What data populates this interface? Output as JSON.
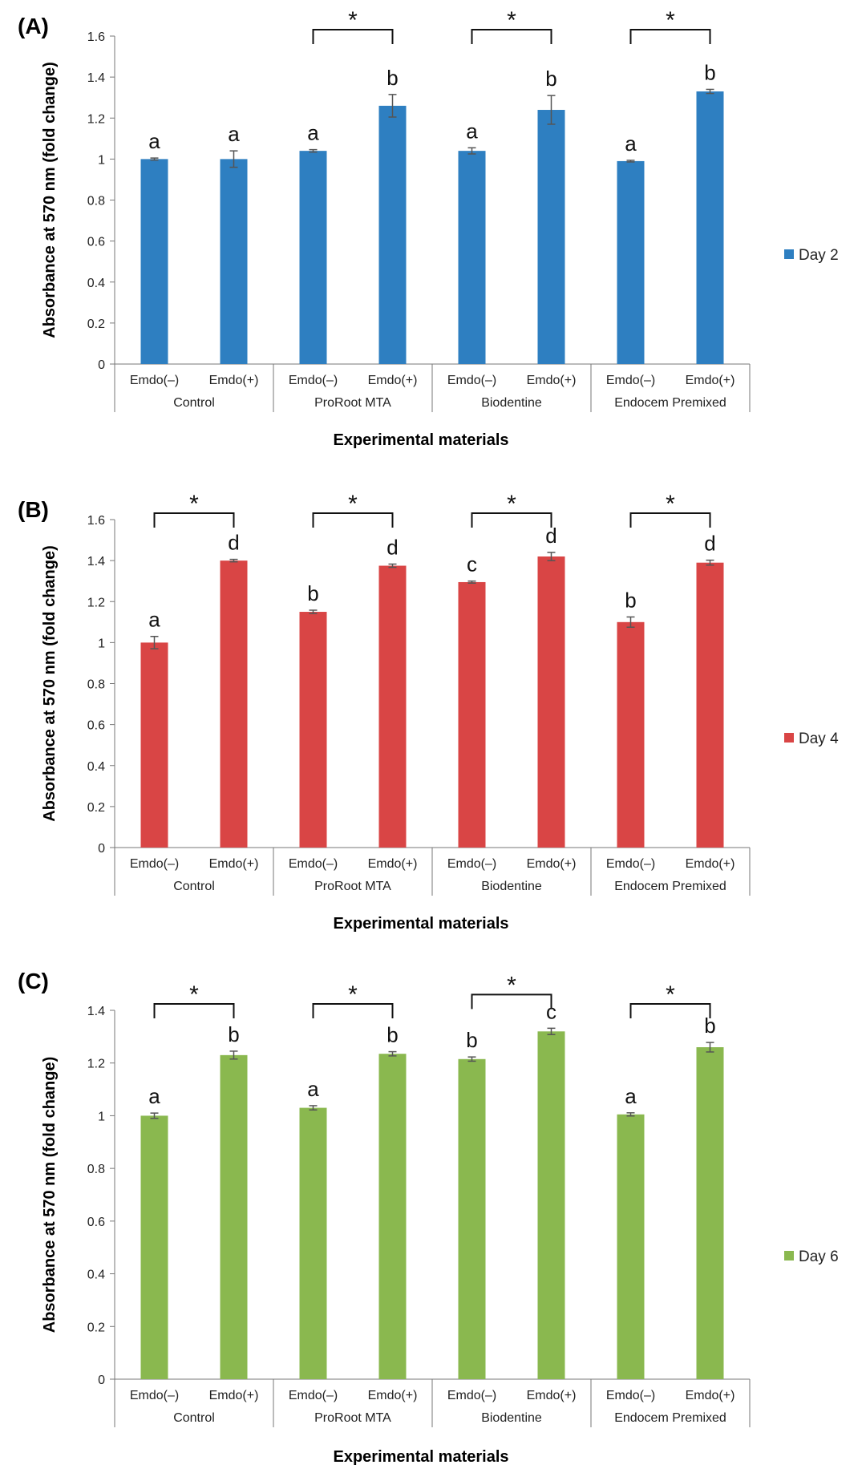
{
  "chart_data": [
    {
      "type": "bar",
      "panel_label": "(A)",
      "ylabel": "Absorbance at 570 nm (fold change)",
      "xlabel": "Experimental materials",
      "ylim": [
        0,
        1.6
      ],
      "ytick_step": 0.2,
      "yticks": [
        "0",
        "0.2",
        "0.4",
        "0.6",
        "0.8",
        "1",
        "1.2",
        "1.4",
        "1.6"
      ],
      "color": "#2e7fc1",
      "legend": {
        "label": "Day 2",
        "position": "right"
      },
      "groups": [
        {
          "label": "Control",
          "subs": [
            "Emdo(–)",
            "Emdo(+)"
          ],
          "values": [
            1.0,
            1.0
          ],
          "errors": [
            0.005,
            0.04
          ],
          "letters": [
            "a",
            "a"
          ],
          "star": null
        },
        {
          "label": "ProRoot MTA",
          "subs": [
            "Emdo(–)",
            "Emdo(+)"
          ],
          "values": [
            1.04,
            1.26
          ],
          "errors": [
            0.006,
            0.055
          ],
          "letters": [
            "a",
            "b"
          ],
          "star": "*"
        },
        {
          "label": "Biodentine",
          "subs": [
            "Emdo(–)",
            "Emdo(+)"
          ],
          "values": [
            1.04,
            1.24
          ],
          "errors": [
            0.015,
            0.07
          ],
          "letters": [
            "a",
            "b"
          ],
          "star": "*"
        },
        {
          "label": "Endocem Premixed",
          "subs": [
            "Emdo(–)",
            "Emdo(+)"
          ],
          "values": [
            0.99,
            1.33
          ],
          "errors": [
            0.004,
            0.01
          ],
          "letters": [
            "a",
            "b"
          ],
          "star": "*"
        }
      ]
    },
    {
      "type": "bar",
      "panel_label": "(B)",
      "ylabel": "Absorbance at 570 nm (fold change)",
      "xlabel": "Experimental materials",
      "ylim": [
        0,
        1.6
      ],
      "ytick_step": 0.2,
      "yticks": [
        "0",
        "0.2",
        "0.4",
        "0.6",
        "0.8",
        "1",
        "1.2",
        "1.4",
        "1.6"
      ],
      "color": "#d94545",
      "legend": {
        "label": "Day 4",
        "position": "right"
      },
      "groups": [
        {
          "label": "Control",
          "subs": [
            "Emdo(–)",
            "Emdo(+)"
          ],
          "values": [
            1.0,
            1.4
          ],
          "errors": [
            0.03,
            0.006
          ],
          "letters": [
            "a",
            "d"
          ],
          "star": "*"
        },
        {
          "label": "ProRoot MTA",
          "subs": [
            "Emdo(–)",
            "Emdo(+)"
          ],
          "values": [
            1.15,
            1.375
          ],
          "errors": [
            0.008,
            0.008
          ],
          "letters": [
            "b",
            "d"
          ],
          "star": "*"
        },
        {
          "label": "Biodentine",
          "subs": [
            "Emdo(–)",
            "Emdo(+)"
          ],
          "values": [
            1.295,
            1.42
          ],
          "errors": [
            0.005,
            0.02
          ],
          "letters": [
            "c",
            "d"
          ],
          "star": "*"
        },
        {
          "label": "Endocem Premixed",
          "subs": [
            "Emdo(–)",
            "Emdo(+)"
          ],
          "values": [
            1.1,
            1.39
          ],
          "errors": [
            0.025,
            0.012
          ],
          "letters": [
            "b",
            "d"
          ],
          "star": "*"
        }
      ]
    },
    {
      "type": "bar",
      "panel_label": "(C)",
      "ylabel": "Absorbance at 570 nm (fold change)",
      "xlabel": "Experimental materials",
      "ylim": [
        0,
        1.4
      ],
      "ytick_step": 0.2,
      "yticks": [
        "0",
        "0.2",
        "0.4",
        "0.6",
        "0.8",
        "1",
        "1.2",
        "1.4"
      ],
      "color": "#8ab84f",
      "legend": {
        "label": "Day 6",
        "position": "right"
      },
      "groups": [
        {
          "label": "Control",
          "subs": [
            "Emdo(–)",
            "Emdo(+)"
          ],
          "values": [
            1.0,
            1.23
          ],
          "errors": [
            0.01,
            0.015
          ],
          "letters": [
            "a",
            "b"
          ],
          "star": "*"
        },
        {
          "label": "ProRoot MTA",
          "subs": [
            "Emdo(–)",
            "Emdo(+)"
          ],
          "values": [
            1.03,
            1.235
          ],
          "errors": [
            0.008,
            0.008
          ],
          "letters": [
            "a",
            "b"
          ],
          "star": "*"
        },
        {
          "label": "Biodentine",
          "subs": [
            "Emdo(–)",
            "Emdo(+)"
          ],
          "values": [
            1.215,
            1.32
          ],
          "errors": [
            0.008,
            0.012
          ],
          "letters": [
            "b",
            "c"
          ],
          "star": "*"
        },
        {
          "label": "Endocem Premixed",
          "subs": [
            "Emdo(–)",
            "Emdo(+)"
          ],
          "values": [
            1.005,
            1.26
          ],
          "errors": [
            0.006,
            0.018
          ],
          "letters": [
            "a",
            "b"
          ],
          "star": "*"
        }
      ]
    }
  ]
}
